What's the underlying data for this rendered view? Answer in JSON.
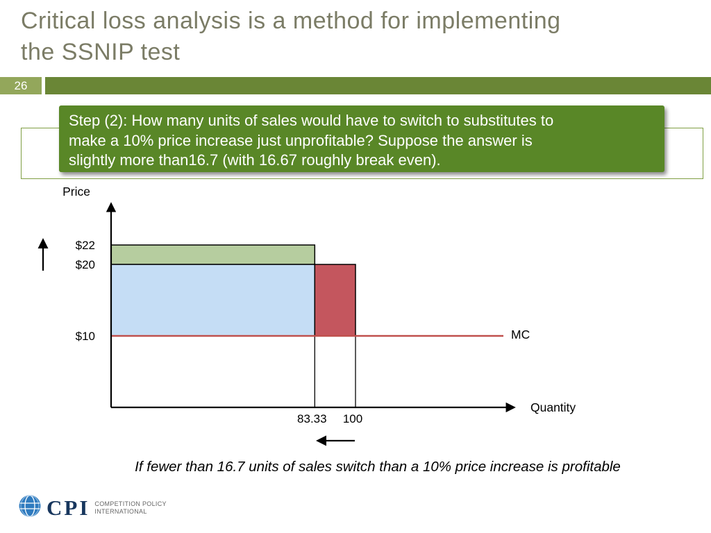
{
  "slide": {
    "page_number": "26",
    "title_lines": [
      "Critical loss analysis is a method for implementing",
      "the SSNIP test"
    ],
    "callout": {
      "lines": [
        "Step (2): How many units of sales would have to switch to substitutes to",
        "make a 10% price increase just unprofitable? Suppose the answer is",
        "slightly more than16.7 (with 16.67 roughly break even)."
      ]
    },
    "footnote": "If fewer than 16.7 units of sales switch than a 10% price increase is profitable",
    "logo": {
      "icon": "globe-icon",
      "text": "CPI",
      "tagline_lines": [
        "COMPETITION POLICY",
        "INTERNATIONAL"
      ]
    }
  },
  "colors": {
    "title": "#7b7c66",
    "page_box": "#93a75b",
    "header_bar": "#6a8636",
    "callout_bg": "#598727",
    "outline_box_border": "#7f9f43",
    "gain_rect": "#b6cd9f",
    "base_rect": "#c5ddf5",
    "loss_rect": "#c4565e",
    "mc_line": "#c0504d"
  },
  "chart_data": {
    "type": "area",
    "title": "",
    "xlabel": "Quantity",
    "ylabel": "Price",
    "xlim": [
      0,
      165
    ],
    "ylim": [
      0,
      28
    ],
    "grid": false,
    "legend": "none",
    "y_ticks": [
      {
        "label": "$22",
        "value": 22
      },
      {
        "label": "$20",
        "value": 20
      },
      {
        "label": "$10",
        "value": 10
      }
    ],
    "x_ticks": [
      {
        "label": "83.33",
        "value": 83.33
      },
      {
        "label": "100",
        "value": 100
      }
    ],
    "rects": [
      {
        "name": "price-increase-gain-rect",
        "x0": 0,
        "x1": 83.33,
        "y0": 20,
        "y1": 22,
        "fill": "#b6cd9f"
      },
      {
        "name": "retained-margin-rect",
        "x0": 0,
        "x1": 83.33,
        "y0": 10,
        "y1": 20,
        "fill": "#c5ddf5"
      },
      {
        "name": "critical-loss-rect",
        "x0": 83.33,
        "x1": 100,
        "y0": 10,
        "y1": 20,
        "fill": "#c4565e"
      }
    ],
    "drop_lines": [
      {
        "x": 83.33,
        "y_from": 10
      },
      {
        "x": 100,
        "y_from": 10
      }
    ],
    "mc_line": {
      "value": 10,
      "label": "MC"
    },
    "annotations": [
      {
        "name": "price-increase-arrow",
        "direction": "up"
      },
      {
        "name": "quantity-decrease-arrow",
        "direction": "left"
      }
    ]
  }
}
